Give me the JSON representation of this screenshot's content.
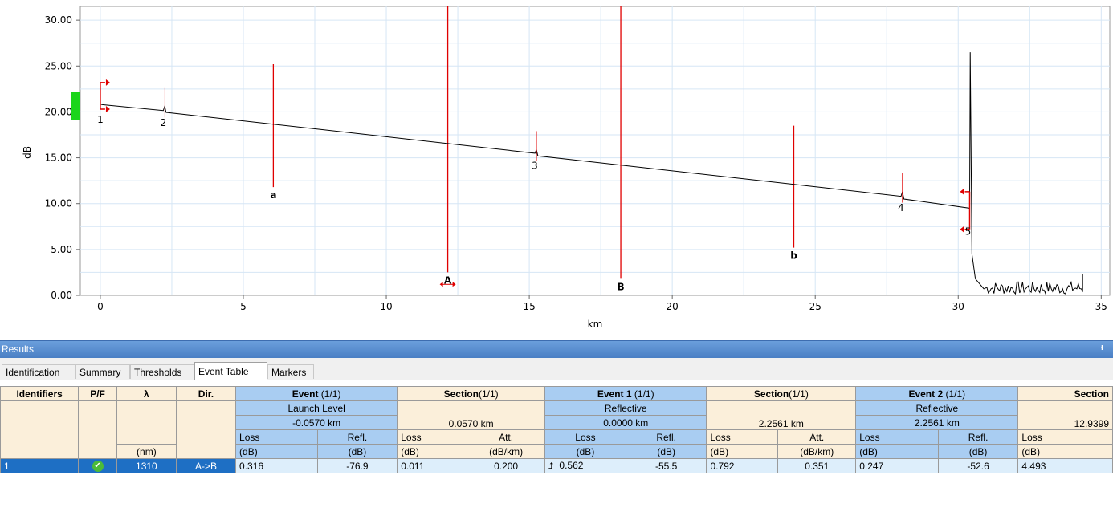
{
  "chart_data": {
    "type": "line",
    "xlabel": "km",
    "ylabel": "dB",
    "xlim": [
      -0.7,
      35.3
    ],
    "ylim": [
      0,
      31.5
    ],
    "x_ticks": [
      "0",
      "5",
      "10",
      "15",
      "20",
      "25",
      "30",
      "35"
    ],
    "y_ticks": [
      "0.00",
      "5.00",
      "10.00",
      "15.00",
      "20.00",
      "25.00",
      "30.00"
    ],
    "grid": true,
    "series": [
      {
        "x": [
          0,
          0.05,
          2.2,
          2.25,
          2.3,
          15.2,
          15.25,
          15.3,
          28.0,
          28.05,
          28.1,
          30.4
        ],
        "y": [
          20.9,
          20.8,
          20.15,
          20.6,
          19.95,
          15.5,
          15.9,
          15.2,
          10.8,
          11.3,
          10.5,
          9.5
        ]
      }
    ],
    "events": [
      {
        "label": "1",
        "x": 0
      },
      {
        "label": "2",
        "x": 2.26
      },
      {
        "label": "3",
        "x": 15.25
      },
      {
        "label": "4",
        "x": 28.05
      },
      {
        "label": "5",
        "x": 30.4
      }
    ],
    "markers": [
      {
        "label": "a",
        "x": 6.05
      },
      {
        "label": "A",
        "x": 12.15
      },
      {
        "label": "B",
        "x": 18.2
      },
      {
        "label": "b",
        "x": 24.25
      }
    ]
  },
  "results": {
    "title": "Results",
    "pin": "ᵻ",
    "tabs": [
      "Identification",
      "Summary",
      "Thresholds",
      "Event Table",
      "Markers"
    ]
  },
  "table": {
    "h_identifiers": "Identifiers",
    "h_pf": "P/F",
    "h_lambda": "λ",
    "h_dir": "Dir.",
    "h_event": "Event",
    "h_event_count": "(1/1)",
    "h_section1": "Section",
    "h_section1_count": "(1/1)",
    "h_event1": "Event 1",
    "h_event1_count": "(1/1)",
    "h_section2": "Section",
    "h_section2_count": "(1/1)",
    "h_event2": "Event 2",
    "h_event2_count": "(1/1)",
    "h_section3": "Section",
    "launch_level": "Launch Level",
    "reflective1": "Reflective",
    "reflective2": "Reflective",
    "ev0_pos": "-0.0570 km",
    "sec1_len": "0.0570 km",
    "ev1_pos": "0.0000 km",
    "sec2_len": "2.2561 km",
    "ev2_pos": "2.2561 km",
    "sec3_len": "12.9399",
    "loss": "Loss",
    "refl": "Refl.",
    "att": "Att.",
    "unit_db": "(dB)",
    "unit_dbkm": "(dB/km)",
    "unit_nm": "(nm)",
    "row": {
      "id": "1",
      "lambda": "1310",
      "dir": "A->B",
      "ev0_loss": "0.316",
      "ev0_refl": "-76.9",
      "sec1_loss": "0.011",
      "sec1_att": "0.200",
      "ev1_loss": "0.562",
      "ev1_refl": "-55.5",
      "sec2_loss": "0.792",
      "sec2_att": "0.351",
      "ev2_loss": "0.247",
      "ev2_refl": "-52.6",
      "sec3_loss": "4.493"
    }
  }
}
